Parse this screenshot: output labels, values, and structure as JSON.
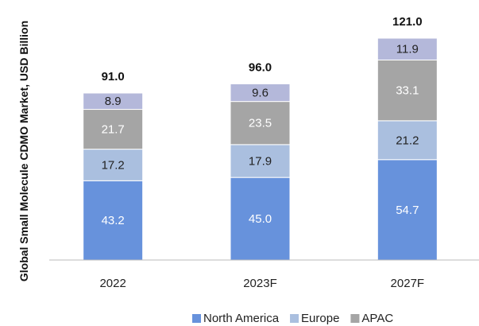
{
  "chart_data": {
    "type": "stacked_bar",
    "y_label": "Global Small Molecule CDMO Market, USD Billion",
    "categories": [
      "2022",
      "2023F",
      "2027F"
    ],
    "series": [
      {
        "name": "North America",
        "color": "#6792dc",
        "label_color": "#ffffff",
        "values": [
          43.2,
          45,
          54.7
        ],
        "value_labels": [
          "43.2",
          "45.0",
          "54.7"
        ]
      },
      {
        "name": "Europe",
        "color": "#aabfdf",
        "label_color": "#222222",
        "values": [
          17.2,
          17.9,
          21.2
        ],
        "value_labels": [
          "17.2",
          "17.9",
          "21.2"
        ]
      },
      {
        "name": "APAC",
        "color": "#a5a5a5",
        "label_color": "#ffffff",
        "values": [
          21.7,
          23.5,
          33.1
        ],
        "value_labels": [
          "21.7",
          "23.5",
          "33.1"
        ]
      },
      {
        "color": "#b4b8da",
        "label_color": "#222222",
        "values": [
          8.9,
          9.6,
          11.9
        ],
        "value_labels": [
          "8.9",
          "9.6",
          "11.9"
        ]
      }
    ],
    "totals": {
      "values": [
        91,
        96,
        121
      ],
      "value_labels": [
        "91.0",
        "96.0",
        "121.0"
      ]
    },
    "ylim": [
      0,
      130
    ]
  }
}
